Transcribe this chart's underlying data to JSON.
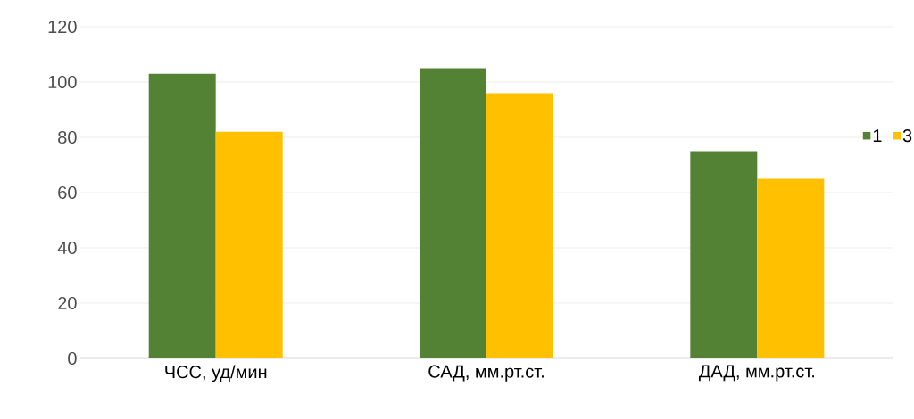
{
  "chart_data": {
    "type": "bar",
    "categories": [
      "ЧСС, уд/мин",
      "САД, мм.рт.ст.",
      "ДАД, мм.рт.ст."
    ],
    "series": [
      {
        "name": "1",
        "color": "#548235",
        "values": [
          103,
          105,
          75
        ]
      },
      {
        "name": "3",
        "color": "#ffc000",
        "values": [
          82,
          96,
          65
        ]
      }
    ],
    "ylim": [
      0,
      120
    ],
    "yticks": [
      0,
      20,
      40,
      60,
      80,
      100,
      120
    ],
    "grid": "y",
    "legend": "right"
  }
}
